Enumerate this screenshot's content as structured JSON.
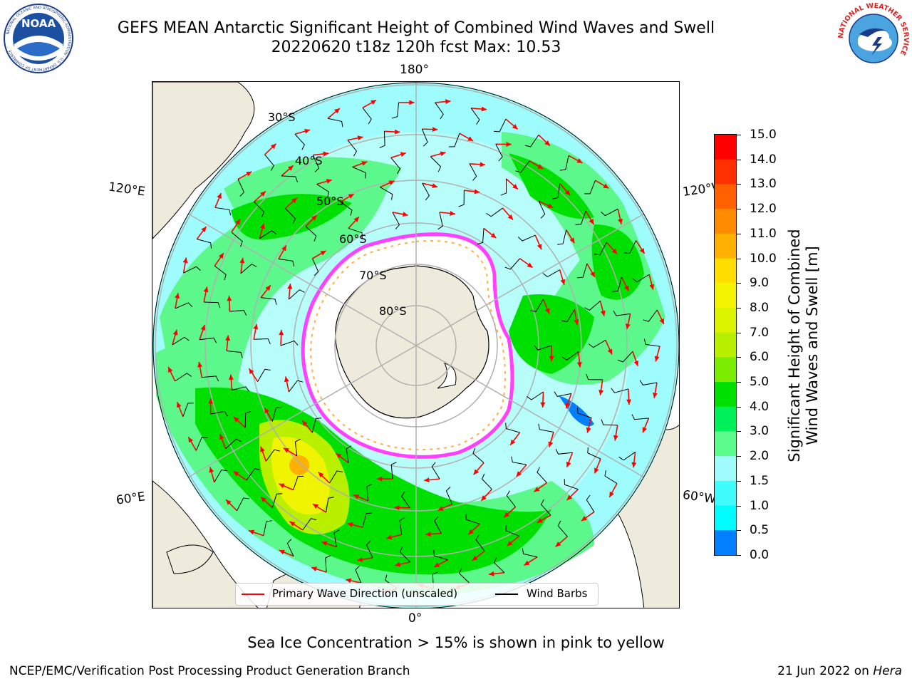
{
  "header": {
    "title_line1": "GEFS MEAN Antarctic Significant Height of Combined Wind Waves and Swell",
    "title_line2": "20220620 t18z 120h fcst   Max: 10.53"
  },
  "logos": {
    "left": {
      "name": "NOAA",
      "text": "NOAA",
      "ring_text": "NATIONAL OCEANIC AND ATMOSPHERIC ADMINISTRATION · U.S. DEPARTMENT OF COMMERCE ·"
    },
    "right": {
      "name": "National Weather Service",
      "ring_text": "NATIONAL WEATHER SERVICE"
    }
  },
  "map": {
    "projection": "south polar stereographic",
    "lon_labels": {
      "top": "180°",
      "bottom": "0°",
      "left_upper": "120°E",
      "left_lower": "60°E",
      "right_upper": "120°W",
      "right_lower": "60°W"
    },
    "lat_labels": [
      "30°S",
      "40°S",
      "50°S",
      "60°S",
      "70°S",
      "80°S"
    ],
    "colors": {
      "land": "#efebdc",
      "ice": "#ffffff",
      "ice_edge": "#ff40ff",
      "ice_edge_inner": "#ffb040",
      "gridline": "#b0b0b0",
      "wave_arrow": "#ff0000",
      "wind_barb": "#000000"
    }
  },
  "colorbar": {
    "label_line1": "Significant Height of Combined",
    "label_line2": "Wind Waves and Swell [m]",
    "ticks": [
      "15.0",
      "14.0",
      "13.0",
      "12.0",
      "11.0",
      "10.0",
      "9.0",
      "8.0",
      "7.0",
      "6.0",
      "5.0",
      "4.0",
      "3.0",
      "2.0",
      "1.5",
      "1.0",
      "0.5",
      "0.0"
    ],
    "colors": [
      "#ff0000",
      "#ff3000",
      "#ff6000",
      "#ff8c00",
      "#ffb000",
      "#ffde00",
      "#f4f400",
      "#dcf400",
      "#b8f000",
      "#7cec00",
      "#00e000",
      "#00f05a",
      "#5cfc8c",
      "#a0fcfc",
      "#40fcfc",
      "#00fcfc",
      "#0080ff",
      "#0000ff"
    ]
  },
  "legend": {
    "items": [
      {
        "label": "Primary Wave Direction (unscaled)",
        "color": "#ff0000"
      },
      {
        "label": "Wind Barbs",
        "color": "#000000"
      }
    ]
  },
  "note": "Sea Ice Concentration > 15% is shown in pink to yellow",
  "footer": {
    "left": "NCEP/EMC/Verification Post Processing Product Generation Branch",
    "right_date": "21 Jun 2022 on",
    "right_host": "Hera"
  }
}
